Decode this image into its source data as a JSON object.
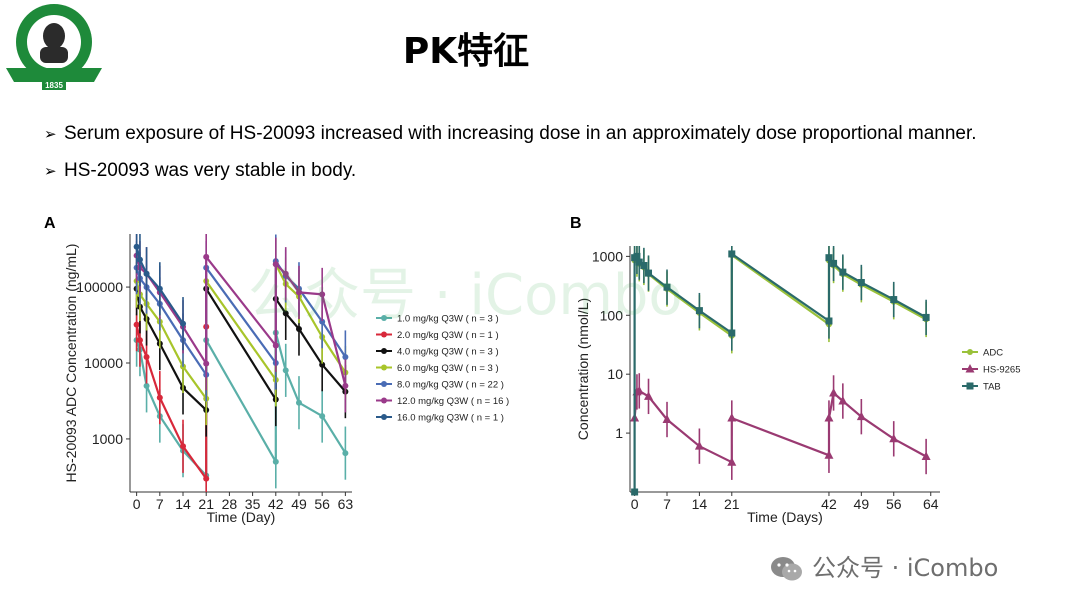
{
  "logo": {
    "top_text": "中山大学孙逸仙纪念医院",
    "en_text": "SUN YAT-SEN MEMORIAL HOSPITAL · SUN YAT-SEN UNIVERSITY",
    "year": "1835",
    "colors": {
      "green": "#1e8a3a",
      "dark": "#1a3a1a"
    }
  },
  "page_title": "PK特征",
  "bullets": [
    {
      "mark": "➢",
      "text": "Serum exposure of HS-20093 increased with increasing dose in an approximately dose proportional manner."
    },
    {
      "mark": "➢",
      "text": "HS-20093 was very stable in body."
    }
  ],
  "watermark_center": "公众号 · iCombo",
  "watermark_corner": "公众号 · iCombo",
  "chart_data": [
    {
      "panel_label": "A",
      "type": "line",
      "xlabel": "Time (Day)",
      "ylabel": "HS-20093 ADC Concentration (ng/mL)",
      "yscale": "log",
      "ylim": [
        200,
        500000
      ],
      "xlim": [
        -2,
        65
      ],
      "xticks": [
        0,
        7,
        14,
        21,
        28,
        35,
        42,
        49,
        56,
        63
      ],
      "yticks": [
        1000,
        10000,
        100000
      ],
      "ytick_labels": [
        "1000",
        "10000",
        "100000"
      ],
      "grid": false,
      "legend_position": "right",
      "series": [
        {
          "name": "1.0 mg/kg Q3W ( n = 3 )",
          "color": "#5aafa8",
          "points": [
            [
              0,
              20000
            ],
            [
              1,
              15000
            ],
            [
              3,
              5000
            ],
            [
              7,
              2000
            ],
            [
              14,
              700
            ],
            [
              21,
              330
            ],
            [
              21,
              20000
            ],
            [
              42,
              500
            ],
            [
              42,
              25000
            ],
            [
              45,
              8000
            ],
            [
              49,
              3000
            ],
            [
              56,
              2000
            ],
            [
              63,
              650
            ]
          ]
        },
        {
          "name": "2.0 mg/kg Q3W ( n = 1 )",
          "color": "#d8283a",
          "points": [
            [
              0,
              32000
            ],
            [
              1,
              20000
            ],
            [
              3,
              12000
            ],
            [
              7,
              3500
            ],
            [
              14,
              800
            ],
            [
              21,
              300
            ],
            [
              21,
              30000
            ]
          ]
        },
        {
          "name": "4.0 mg/kg Q3W ( n = 3 )",
          "color": "#111111",
          "points": [
            [
              0,
              95000
            ],
            [
              1,
              55000
            ],
            [
              3,
              38000
            ],
            [
              7,
              18000
            ],
            [
              14,
              4700
            ],
            [
              21,
              2400
            ],
            [
              21,
              95000
            ],
            [
              42,
              3300
            ],
            [
              42,
              70000
            ],
            [
              45,
              45000
            ],
            [
              49,
              28000
            ],
            [
              56,
              9500
            ],
            [
              63,
              4200
            ]
          ]
        },
        {
          "name": "6.0 mg/kg Q3W ( n = 3 )",
          "color": "#a8c52a",
          "points": [
            [
              0,
              120000
            ],
            [
              1,
              80000
            ],
            [
              3,
              60000
            ],
            [
              7,
              35000
            ],
            [
              14,
              9000
            ],
            [
              21,
              3400
            ],
            [
              21,
              120000
            ],
            [
              42,
              6000
            ],
            [
              42,
              200000
            ],
            [
              45,
              110000
            ],
            [
              49,
              75000
            ],
            [
              56,
              22000
            ],
            [
              63,
              7500
            ]
          ]
        },
        {
          "name": "8.0 mg/kg Q3W ( n = 22 )",
          "color": "#4a6cb5",
          "points": [
            [
              0,
              180000
            ],
            [
              1,
              130000
            ],
            [
              3,
              100000
            ],
            [
              7,
              60000
            ],
            [
              14,
              20000
            ],
            [
              21,
              7000
            ],
            [
              21,
              180000
            ],
            [
              42,
              10000
            ],
            [
              42,
              220000
            ],
            [
              45,
              140000
            ],
            [
              49,
              95000
            ],
            [
              56,
              35000
            ],
            [
              63,
              12000
            ]
          ]
        },
        {
          "name": "12.0 mg/kg Q3W ( n = 16 )",
          "color": "#9a3a8a",
          "points": [
            [
              0,
              260000
            ],
            [
              1,
              180000
            ],
            [
              3,
              150000
            ],
            [
              7,
              85000
            ],
            [
              14,
              30000
            ],
            [
              21,
              9800
            ],
            [
              21,
              250000
            ],
            [
              42,
              17000
            ],
            [
              42,
              200000
            ],
            [
              45,
              150000
            ],
            [
              49,
              85000
            ],
            [
              56,
              80000
            ],
            [
              63,
              5000
            ]
          ]
        },
        {
          "name": "16.0 mg/kg Q3W ( n = 1 )",
          "color": "#2a5a8a",
          "points": [
            [
              0,
              340000
            ],
            [
              1,
              230000
            ],
            [
              3,
              150000
            ],
            [
              7,
              95000
            ],
            [
              14,
              33000
            ]
          ]
        }
      ]
    },
    {
      "panel_label": "B",
      "type": "line",
      "xlabel": "Time (Days)",
      "ylabel": "Concentration (nmol/L)",
      "yscale": "log",
      "ylim": [
        0.1,
        1500
      ],
      "xlim": [
        -1,
        66
      ],
      "xticks": [
        0,
        7,
        14,
        21,
        42,
        49,
        56,
        64
      ],
      "yticks": [
        1,
        10,
        100,
        1000
      ],
      "ytick_labels": [
        "1",
        "10",
        "100",
        "1000"
      ],
      "grid": false,
      "legend_position": "right",
      "series": [
        {
          "name": "ADC",
          "color": "#9ac13a",
          "marker": "circle",
          "points": [
            [
              0,
              850
            ],
            [
              0.5,
              900
            ],
            [
              1,
              750
            ],
            [
              2,
              650
            ],
            [
              3,
              500
            ],
            [
              7,
              280
            ],
            [
              14,
              110
            ],
            [
              21,
              45
            ],
            [
              21,
              1050
            ],
            [
              42,
              70
            ],
            [
              42,
              850
            ],
            [
              43,
              700
            ],
            [
              45,
              500
            ],
            [
              49,
              330
            ],
            [
              56,
              170
            ],
            [
              63,
              85
            ]
          ]
        },
        {
          "name": "HS-9265",
          "color": "#9a3a72",
          "marker": "triangle",
          "points": [
            [
              0,
              1.8
            ],
            [
              0.5,
              5
            ],
            [
              1,
              5.2
            ],
            [
              3,
              4.2
            ],
            [
              7,
              1.7
            ],
            [
              14,
              0.6
            ],
            [
              21,
              0.32
            ],
            [
              21,
              1.8
            ],
            [
              42,
              0.42
            ],
            [
              42,
              1.8
            ],
            [
              43,
              4.8
            ],
            [
              45,
              3.5
            ],
            [
              49,
              1.9
            ],
            [
              56,
              0.8
            ],
            [
              63,
              0.4
            ]
          ]
        },
        {
          "name": "TAB",
          "color": "#2a6a6a",
          "marker": "square",
          "points": [
            [
              0,
              0.1
            ],
            [
              0,
              950
            ],
            [
              0.5,
              1000
            ],
            [
              1,
              800
            ],
            [
              2,
              700
            ],
            [
              3,
              520
            ],
            [
              7,
              300
            ],
            [
              14,
              120
            ],
            [
              21,
              50
            ],
            [
              21,
              1100
            ],
            [
              42,
              80
            ],
            [
              42,
              950
            ],
            [
              43,
              760
            ],
            [
              45,
              540
            ],
            [
              49,
              360
            ],
            [
              56,
              185
            ],
            [
              63,
              92
            ]
          ]
        }
      ]
    }
  ]
}
